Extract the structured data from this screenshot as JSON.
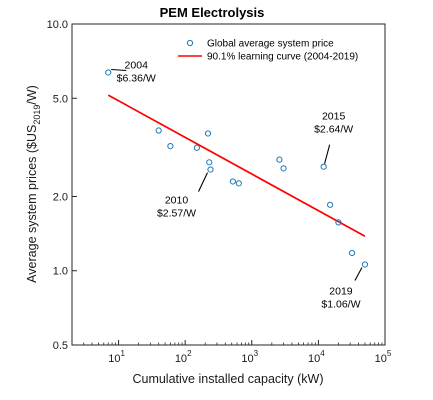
{
  "chart_data": {
    "type": "scatter",
    "title": "PEM Electrolysis",
    "xlabel": "Cumulative installed capacity (kW)",
    "ylabel": "Average system prices ($US2019/W)",
    "ylabel_parts": {
      "main": "Average system prices ($US",
      "sub": "2019",
      "tail": "/W)"
    },
    "xscale": "log",
    "yscale": "log",
    "xlim": [
      2,
      100000
    ],
    "ylim": [
      0.5,
      10.0
    ],
    "x_ticks": [
      {
        "value": 10,
        "base": "10",
        "exp": "1"
      },
      {
        "value": 100,
        "base": "10",
        "exp": "2"
      },
      {
        "value": 1000,
        "base": "10",
        "exp": "3"
      },
      {
        "value": 10000,
        "base": "10",
        "exp": "4"
      },
      {
        "value": 100000,
        "base": "10",
        "exp": "5"
      }
    ],
    "y_ticks": [
      {
        "value": 0.5,
        "label": "0.5"
      },
      {
        "value": 1.0,
        "label": "1.0"
      },
      {
        "value": 2.0,
        "label": "2.0"
      },
      {
        "value": 5.0,
        "label": "5.0"
      },
      {
        "value": 10.0,
        "label": "10.0"
      }
    ],
    "grid": false,
    "legend_position": "top-right",
    "series": [
      {
        "name": "Global average system price",
        "marker": "open-circle",
        "color": "#1f77b4",
        "points": [
          {
            "x": 7,
            "y": 6.36
          },
          {
            "x": 40,
            "y": 3.7
          },
          {
            "x": 60,
            "y": 3.2
          },
          {
            "x": 150,
            "y": 3.15
          },
          {
            "x": 220,
            "y": 3.6
          },
          {
            "x": 230,
            "y": 2.75
          },
          {
            "x": 240,
            "y": 2.57
          },
          {
            "x": 520,
            "y": 2.3
          },
          {
            "x": 640,
            "y": 2.26
          },
          {
            "x": 2600,
            "y": 2.82
          },
          {
            "x": 3000,
            "y": 2.6
          },
          {
            "x": 12000,
            "y": 2.64
          },
          {
            "x": 15000,
            "y": 1.85
          },
          {
            "x": 20000,
            "y": 1.57
          },
          {
            "x": 32000,
            "y": 1.18
          },
          {
            "x": 50000,
            "y": 1.06
          }
        ]
      },
      {
        "name": "90.1% learning curve (2004-2019)",
        "type": "line",
        "color": "#ff0000",
        "points": [
          {
            "x": 7,
            "y": 5.15
          },
          {
            "x": 50000,
            "y": 1.38
          }
        ]
      }
    ],
    "annotations": [
      {
        "year": "2004",
        "price": "$6.36/W",
        "point": {
          "x": 7,
          "y": 6.36
        }
      },
      {
        "year": "2010",
        "price": "$2.57/W",
        "point": {
          "x": 240,
          "y": 2.57
        }
      },
      {
        "year": "2015",
        "price": "$2.64/W",
        "point": {
          "x": 12000,
          "y": 2.64
        }
      },
      {
        "year": "2019",
        "price": "$1.06/W",
        "point": {
          "x": 50000,
          "y": 1.06
        }
      }
    ]
  }
}
